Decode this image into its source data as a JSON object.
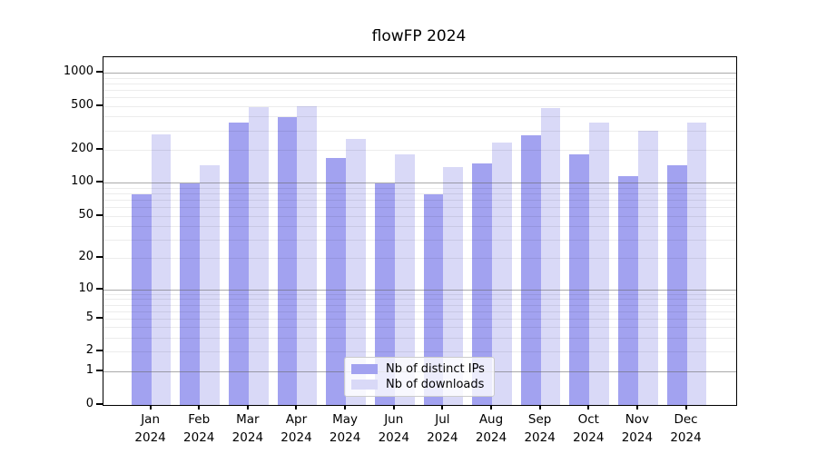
{
  "title": "flowFP 2024",
  "chart_data": {
    "type": "bar",
    "title": "flowFP 2024",
    "xlabel": "",
    "ylabel": "",
    "y_scale": "log10(value+1), symlog-like down to 0",
    "ylim": [
      0,
      1390
    ],
    "grid": "horizontal; light minor lines each log step, darker solid lines at 1, 10, 100, 1000; drawn over bars",
    "legend_position": "inside bottom-center",
    "ytick_labels": [
      "0",
      "1",
      "2",
      "5",
      "10",
      "20",
      "50",
      "100",
      "200",
      "500",
      "1000"
    ],
    "ytick_values": [
      0,
      1,
      2,
      5,
      10,
      20,
      50,
      100,
      200,
      500,
      1000
    ],
    "major_grid_values": [
      1,
      10,
      100,
      1000
    ],
    "categories": [
      "Jan",
      "Feb",
      "Mar",
      "Apr",
      "May",
      "Jun",
      "Jul",
      "Aug",
      "Sep",
      "Oct",
      "Nov",
      "Dec"
    ],
    "xtick_year": "2024",
    "series": [
      {
        "name": "Nb of distinct IPs",
        "color": "#a2a2f0",
        "values": [
          80,
          100,
          360,
          400,
          170,
          99,
          80,
          153,
          275,
          185,
          116,
          145
        ]
      },
      {
        "name": "Nb of downloads",
        "color": "#d9d9f7",
        "values": [
          280,
          145,
          490,
          505,
          255,
          182,
          140,
          235,
          485,
          355,
          300,
          355
        ]
      }
    ]
  },
  "colors": {
    "bar_distinct_ips": "#a2a2f0",
    "bar_downloads": "#d9d9f7",
    "major_gridline": "#b0b0b0",
    "minor_gridline": "#ededed",
    "axis": "#000000",
    "legend_border": "#cccccc"
  }
}
